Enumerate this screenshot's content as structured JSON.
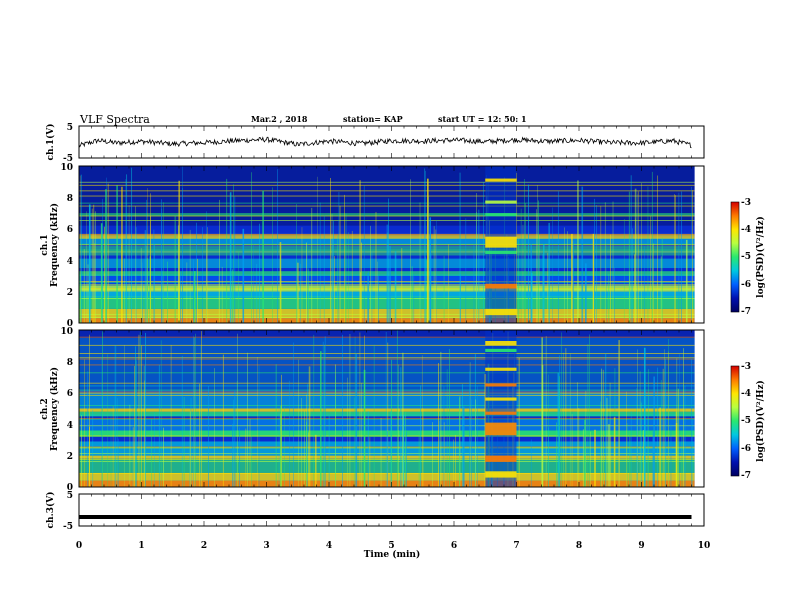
{
  "header": {
    "title": "VLF Spectra",
    "date": "Mar.2  , 2018",
    "station": "station= KAP",
    "start_ut": "start  UT  =   12: 50: 1"
  },
  "panels": {
    "ch1_wave_label": "ch.1(V)",
    "ch1_spec_label": "ch.1",
    "ch2_spec_label": "ch.2",
    "freq_label": "Frequency  (kHz)",
    "ch3_wave_label": "ch.3(V)",
    "x_label": "Time  (min)"
  },
  "colorbar": {
    "label": "log(PSD)(V²/Hz)",
    "ticks": [
      "-3",
      "-4",
      "-5",
      "-6",
      "-7"
    ],
    "colors": [
      "#d40000",
      "#ff7a00",
      "#ffe600",
      "#b8ff40",
      "#28e870",
      "#00c8e0",
      "#0060ff",
      "#0010b0",
      "#000060"
    ]
  },
  "chart_data": [
    {
      "type": "line",
      "name": "ch.1 waveform",
      "ylabel": "ch.1(V)",
      "xlim": [
        0,
        10
      ],
      "ylim": [
        -5,
        5
      ],
      "yticks": [
        "5",
        "-5"
      ],
      "x": [
        0,
        0.3,
        0.6,
        1.0,
        1.5,
        2.0,
        2.5,
        3.0,
        3.5,
        4.0,
        4.5,
        5.0,
        5.5,
        6.0,
        6.5,
        7.0,
        7.5,
        8.0,
        8.5,
        9.0,
        9.5,
        9.8
      ],
      "values": [
        -1.2,
        0.5,
        -0.3,
        0.2,
        -0.6,
        -0.2,
        0.4,
        0.8,
        -0.8,
        0.3,
        -0.5,
        0.4,
        0.3,
        0.6,
        0.1,
        0.7,
        0.2,
        0.5,
        -0.2,
        -0.3,
        0.4,
        -1.0
      ]
    },
    {
      "type": "heatmap",
      "name": "ch.1 spectrogram",
      "ylabel": "Frequency  (kHz)",
      "xlim": [
        0,
        10
      ],
      "ylim": [
        0,
        10
      ],
      "yticks": [
        "0",
        "2",
        "4",
        "6",
        "8",
        "10"
      ],
      "zlim": [
        -7,
        -3
      ],
      "burst_interval_min": [
        6.5,
        7.0
      ]
    },
    {
      "type": "heatmap",
      "name": "ch.2 spectrogram",
      "ylabel": "Frequency  (kHz)",
      "xlim": [
        0,
        10
      ],
      "ylim": [
        0,
        10
      ],
      "yticks": [
        "0",
        "2",
        "4",
        "6",
        "8",
        "10"
      ],
      "zlim": [
        -7,
        -3
      ],
      "burst_interval_min": [
        6.5,
        7.0
      ]
    },
    {
      "type": "line",
      "name": "ch.3 waveform",
      "ylabel": "ch.3(V)",
      "xlim": [
        0,
        10
      ],
      "ylim": [
        -5,
        5
      ],
      "yticks": [
        "5",
        "-5"
      ],
      "x": [
        0,
        9.8
      ],
      "values": [
        -2.2,
        -2.2
      ]
    }
  ],
  "x_axis": {
    "label": "Time  (min)",
    "ticks": [
      "0",
      "1",
      "2",
      "3",
      "4",
      "5",
      "6",
      "7",
      "8",
      "9",
      "10"
    ]
  }
}
